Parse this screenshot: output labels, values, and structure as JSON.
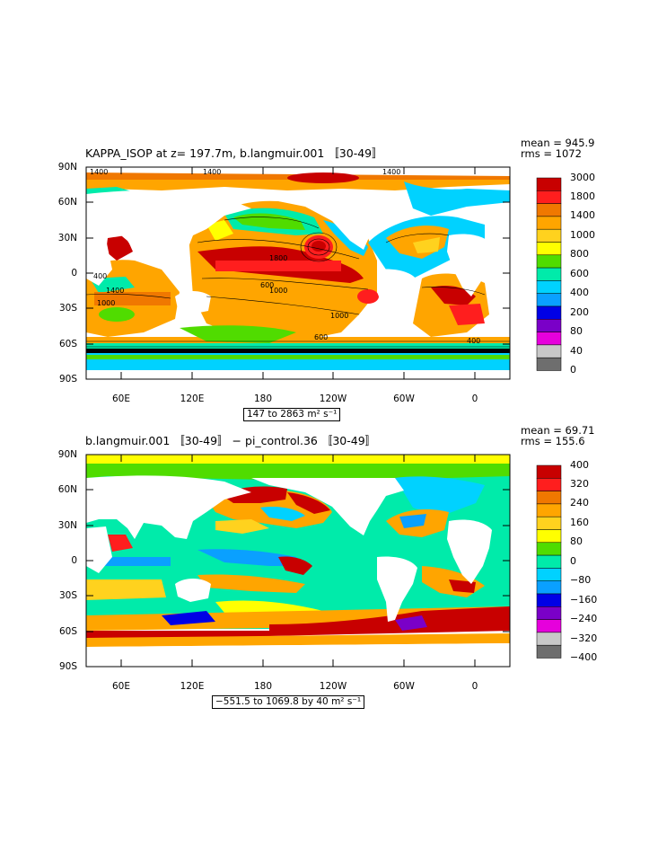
{
  "panels": [
    {
      "title": "KAPPA_ISOP at z= 197.7m, b.langmuir.001 〚30-49〛",
      "stats": {
        "mean": "mean = 945.9",
        "rms": "rms = 1072"
      },
      "range_text": "147 to 2863 m² s⁻¹",
      "colorbar": {
        "labels": [
          "3000",
          "1800",
          "1400",
          "1000",
          "800",
          "600",
          "400",
          "200",
          "80",
          "40",
          "0"
        ],
        "colors": [
          "#c80000",
          "#ff1e1e",
          "#f07800",
          "#ffa500",
          "#ffd21e",
          "#ffff00",
          "#50dc00",
          "#00ebaa",
          "#00d2ff",
          "#0aa0ff",
          "#0000e6",
          "#7a00c8",
          "#e600dc",
          "#c8c8c8",
          "#6e6e6e"
        ]
      },
      "contour_labels": [
        "1400",
        "1400",
        "1800",
        "1400",
        "400",
        "1400",
        "1000",
        "1000",
        "600",
        "1000",
        "600",
        "400"
      ]
    },
    {
      "title": "b.langmuir.001 〚30-49〛 − pi_control.36 〚30-49〛",
      "stats": {
        "mean": "mean = 69.71",
        "rms": "rms = 155.6"
      },
      "range_text": "−551.5 to 1069.8 by 40 m² s⁻¹",
      "colorbar": {
        "labels": [
          "400",
          "320",
          "240",
          "160",
          "80",
          "0",
          "−80",
          "−160",
          "−240",
          "−320",
          "−400"
        ],
        "colors": [
          "#c80000",
          "#ff1e1e",
          "#f07800",
          "#ffa500",
          "#ffd21e",
          "#ffff00",
          "#50dc00",
          "#00ebaa",
          "#00d2ff",
          "#0aa0ff",
          "#0000e6",
          "#7a00c8",
          "#e600dc",
          "#c8c8c8",
          "#6e6e6e"
        ]
      }
    }
  ],
  "axes": {
    "lat_labels": [
      "90N",
      "60N",
      "30N",
      "0",
      "30S",
      "60S",
      "90S"
    ],
    "lon_labels": [
      "60E",
      "120E",
      "180",
      "120W",
      "60W",
      "0"
    ]
  }
}
